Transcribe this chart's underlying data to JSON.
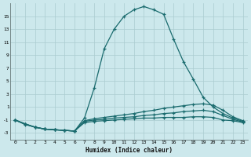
{
  "xlabel": "Humidex (Indice chaleur)",
  "bg_color": "#cce8ec",
  "line_color": "#1a6b6e",
  "grid_color": "#aaccd0",
  "x_values": [
    0,
    1,
    2,
    3,
    4,
    5,
    6,
    7,
    8,
    9,
    10,
    11,
    12,
    13,
    14,
    15,
    16,
    17,
    18,
    19,
    20,
    21,
    22,
    23
  ],
  "line1_y": [
    -1.0,
    -1.7,
    -2.1,
    -2.4,
    -2.5,
    -2.6,
    -2.7,
    -0.7,
    4.0,
    10.0,
    13.0,
    15.0,
    16.0,
    16.5,
    16.0,
    15.3,
    11.5,
    8.0,
    5.3,
    2.5,
    1.0,
    0.0,
    -0.7,
    -1.2
  ],
  "line2_y": [
    -1.0,
    -1.6,
    -2.1,
    -2.4,
    -2.5,
    -2.6,
    -2.7,
    -1.1,
    -0.8,
    -0.6,
    -0.4,
    -0.2,
    0.0,
    0.3,
    0.5,
    0.8,
    1.0,
    1.2,
    1.4,
    1.5,
    1.3,
    0.5,
    -0.5,
    -1.1
  ],
  "line3_y": [
    -1.0,
    -1.6,
    -2.1,
    -2.4,
    -2.5,
    -2.6,
    -2.7,
    -1.2,
    -1.0,
    -0.9,
    -0.7,
    -0.6,
    -0.5,
    -0.3,
    -0.2,
    0.0,
    0.1,
    0.3,
    0.4,
    0.5,
    0.3,
    -0.3,
    -0.9,
    -1.3
  ],
  "line4_y": [
    -1.0,
    -1.6,
    -2.1,
    -2.4,
    -2.5,
    -2.6,
    -2.7,
    -1.4,
    -1.2,
    -1.1,
    -1.0,
    -0.9,
    -0.8,
    -0.7,
    -0.7,
    -0.6,
    -0.6,
    -0.6,
    -0.5,
    -0.5,
    -0.6,
    -1.0,
    -1.1,
    -1.4
  ],
  "xlim": [
    -0.5,
    23.5
  ],
  "ylim": [
    -4.0,
    17.0
  ],
  "yticks": [
    -3,
    -1,
    1,
    3,
    5,
    7,
    9,
    11,
    13,
    15
  ],
  "xticks": [
    0,
    1,
    2,
    3,
    4,
    5,
    6,
    7,
    8,
    9,
    10,
    11,
    12,
    13,
    14,
    15,
    16,
    17,
    18,
    19,
    20,
    21,
    22,
    23
  ]
}
